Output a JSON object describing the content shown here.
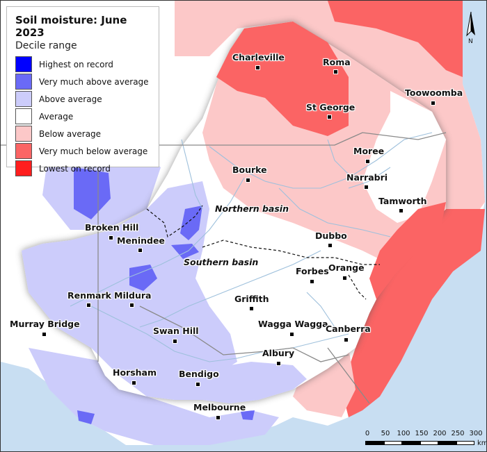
{
  "legend": {
    "title": "Soil moisture: June 2023",
    "subtitle": "Decile range",
    "items": [
      {
        "label": "Highest on record",
        "color": "#0000ff"
      },
      {
        "label": "Very much above average",
        "color": "#6a6af6"
      },
      {
        "label": "Above average",
        "color": "#ccccfb"
      },
      {
        "label": "Average",
        "color": "#ffffff"
      },
      {
        "label": "Below average",
        "color": "#fcc8c8"
      },
      {
        "label": "Very much below average",
        "color": "#fb6464"
      },
      {
        "label": "Lowest on record",
        "color": "#ff1e1e"
      }
    ]
  },
  "towns": {
    "charleville": "Charleville",
    "roma": "Roma",
    "toowoomba": "Toowoomba",
    "st_george": "St George",
    "moree": "Moree",
    "narrabri": "Narrabri",
    "bourke": "Bourke",
    "tamworth": "Tamworth",
    "broken_hill": "Broken Hill",
    "menindee": "Menindee",
    "dubbo": "Dubbo",
    "orange": "Orange",
    "forbes": "Forbes",
    "renmark": "Renmark",
    "mildura": "Mildura",
    "griffith": "Griffith",
    "murray_bridge": "Murray Bridge",
    "swan_hill": "Swan Hill",
    "wagga_wagga": "Wagga Wagga",
    "canberra": "Canberra",
    "albury": "Albury",
    "horsham": "Horsham",
    "bendigo": "Bendigo",
    "melbourne": "Melbourne"
  },
  "basins": {
    "northern": "Northern basin",
    "southern": "Southern basin"
  },
  "north_arrow": {
    "label": "N"
  },
  "scale_bar": {
    "ticks": [
      "0",
      "50",
      "100",
      "150",
      "200",
      "250",
      "300"
    ],
    "unit": "km"
  },
  "colors": {
    "ocean": "#c8def2",
    "outside_land": "#ffffff",
    "river": "#9ec0dc"
  }
}
